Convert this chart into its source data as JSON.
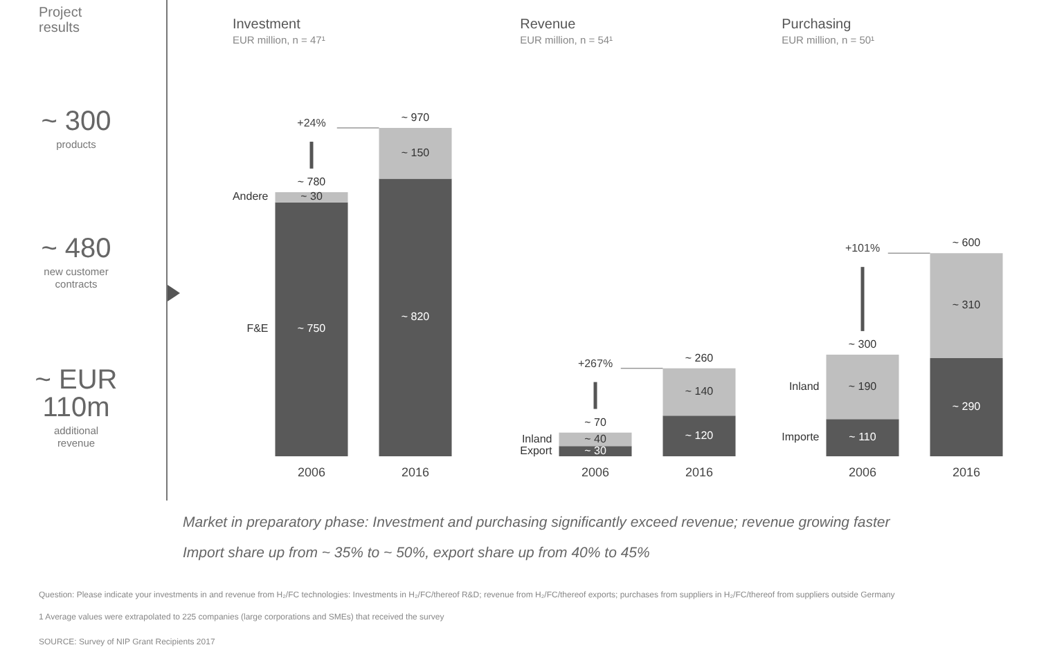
{
  "chart_data": [
    {
      "type": "other",
      "title": "Project results",
      "annotations": [
        "~ 300",
        "products",
        "~ 480",
        "new customer contracts",
        "~ EUR 110m",
        "additional revenue"
      ]
    },
    {
      "type": "bar",
      "title": "Investment",
      "subtitle": "EUR million, n = 47¹",
      "categories": [
        "2006",
        "2016"
      ],
      "stacked": true,
      "series": [
        {
          "name": "F&E",
          "color": "#595959",
          "values": [
            750,
            820
          ],
          "value_labels": [
            "~ 750",
            "~ 820"
          ]
        },
        {
          "name": "Andere",
          "color": "#bfbfbf",
          "values": [
            30,
            150
          ],
          "value_labels": [
            "~ 30",
            "~ 150"
          ]
        }
      ],
      "totals": [
        "~ 780",
        "~ 970"
      ],
      "annotations": [
        "+24%"
      ]
    },
    {
      "type": "bar",
      "title": "Revenue",
      "subtitle": "EUR million, n = 54¹",
      "categories": [
        "2006",
        "2016"
      ],
      "stacked": true,
      "series": [
        {
          "name": "Export",
          "color": "#595959",
          "values": [
            30,
            120
          ],
          "value_labels": [
            "~ 30",
            "~ 120"
          ]
        },
        {
          "name": "Inland",
          "color": "#bfbfbf",
          "values": [
            40,
            140
          ],
          "value_labels": [
            "~ 40",
            "~ 140"
          ]
        }
      ],
      "totals": [
        "~ 70",
        "~ 260"
      ],
      "annotations": [
        "+267%"
      ]
    },
    {
      "type": "bar",
      "title": "Purchasing",
      "subtitle": "EUR million, n = 50¹",
      "categories": [
        "2006",
        "2016"
      ],
      "stacked": true,
      "series": [
        {
          "name": "Importe",
          "color": "#595959",
          "values": [
            110,
            290
          ],
          "value_labels": [
            "~ 110",
            "~ 290"
          ]
        },
        {
          "name": "Inland",
          "color": "#bfbfbf",
          "values": [
            190,
            310
          ],
          "value_labels": [
            "~ 190",
            "~ 310"
          ]
        }
      ],
      "totals": [
        "~ 300",
        "~ 600"
      ],
      "annotations": [
        "+101%"
      ]
    },
    {
      "type": "other",
      "annotations": [
        "Market in preparatory phase: Investment and purchasing significantly exceed revenue; revenue growing faster",
        "Import share up from ~ 35% to ~ 50%, export share up from 40% to 45%",
        "Question: Please indicate your investments in and revenue from H₂/FC technologies: Investments in H₂/FC/thereof R&D; revenue from H₂/FC/thereof exports; purchases from suppliers in H₂/FC/thereof from suppliers outside Germany",
        "1 Average values were extrapolated to 225 companies (large corporations and SMEs) that received the survey",
        "SOURCE: Survey of NIP Grant Recipients 2017"
      ]
    }
  ]
}
